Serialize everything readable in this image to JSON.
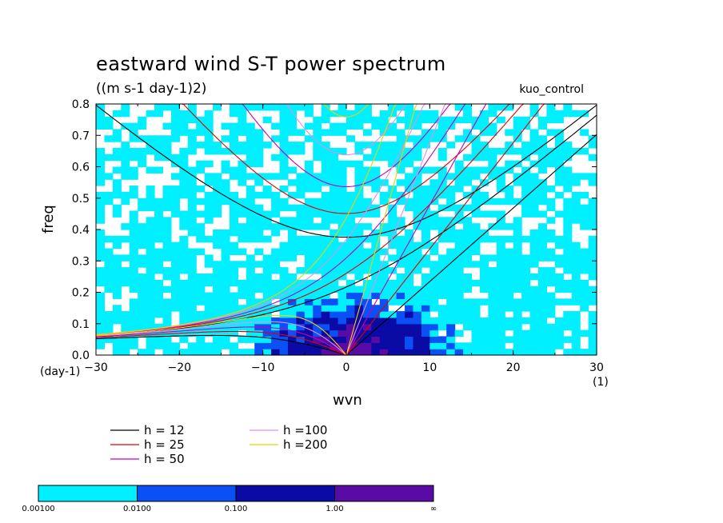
{
  "title": "eastward wind S-T power spectrum",
  "units": "((m s-1 day-1)2)",
  "run_name": "kuo_control",
  "colorbar": {
    "labels": [
      "0.00100",
      "0.0100",
      "0.100",
      "1.00",
      "∞"
    ],
    "colors": [
      "#00f0ff",
      "#0a50f5",
      "#0a0aa5",
      "#5a0aa5"
    ]
  },
  "legend": [
    {
      "label": "h = 12",
      "color": "#000000"
    },
    {
      "label": "h = 25",
      "color": "#e00000"
    },
    {
      "label": "h = 50",
      "color": "#c000c0"
    },
    {
      "label": "h =100",
      "color": "#e090e0"
    },
    {
      "label": "h =200",
      "color": "#f0d000"
    }
  ],
  "chart_data": {
    "type": "heatmap",
    "title": "eastward wind S-T power spectrum",
    "subtitle": "((m s-1 day-1)2)",
    "xlabel": "wvn",
    "ylabel": "freq",
    "x_unit": "(1)",
    "y_unit": "(day-1)",
    "xlim": [
      -30,
      30
    ],
    "ylim": [
      0,
      0.8
    ],
    "x_ticks": [
      -30,
      -20,
      -10,
      0,
      10,
      20,
      30
    ],
    "x_tick_labels": [
      "−30",
      "−20",
      "−10",
      "0",
      "10",
      "20",
      "30"
    ],
    "y_ticks": [
      0,
      0.1,
      0.2,
      0.3,
      0.4,
      0.5,
      0.6,
      0.7,
      0.8
    ],
    "y_tick_labels": [
      "0.0",
      "0.1",
      "0.2",
      "0.3",
      "0.4",
      "0.5",
      "0.6",
      "0.7",
      "0.8"
    ],
    "shading_levels": [
      0.001,
      0.01,
      0.1,
      1.0
    ],
    "dispersion_curves": [
      {
        "name": "h = 12",
        "color": "#000000"
      },
      {
        "name": "h = 25",
        "color": "#e00000"
      },
      {
        "name": "h = 50",
        "color": "#c000c0"
      },
      {
        "name": "h =100",
        "color": "#e090e0"
      },
      {
        "name": "h =200",
        "color": "#f0d000"
      }
    ]
  }
}
